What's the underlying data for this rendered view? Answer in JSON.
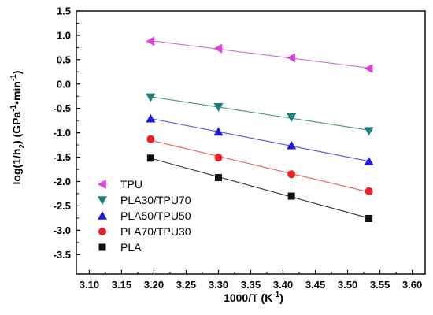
{
  "chart_data": {
    "type": "scatter",
    "xlabel": {
      "main": "1000/T (K",
      "sup": "-1",
      "end": ")"
    },
    "ylabel": {
      "p1": "log(1/h",
      "sub": "2",
      "p2": ") (GPa",
      "sup1": "-1",
      "p3": "•min",
      "sup2": "-1",
      "p4": ")"
    },
    "xlim": [
      3.08,
      3.62
    ],
    "ylim": [
      -3.9,
      1.5
    ],
    "xticks": [
      3.1,
      3.15,
      3.2,
      3.25,
      3.3,
      3.35,
      3.4,
      3.45,
      3.5,
      3.55,
      3.6
    ],
    "xtick_labels": [
      "3.10",
      "3.15",
      "3.20",
      "3.25",
      "3.30",
      "3.35",
      "3.40",
      "3.45",
      "3.50",
      "3.55",
      "3.60"
    ],
    "yticks": [
      1.5,
      1.0,
      0.5,
      0.0,
      -0.5,
      -1.0,
      -1.5,
      -2.0,
      -2.5,
      -3.0,
      -3.5
    ],
    "ytick_labels": [
      "1.5",
      "1.0",
      "0.5",
      "0.0",
      "-0.5",
      "-1.0",
      "-1.5",
      "-2.0",
      "-2.5",
      "-3.0",
      "-3.5"
    ],
    "grid": false,
    "legend_position": "bottom-left",
    "series": [
      {
        "name": "TPU",
        "marker": "triangle-left",
        "color": "#e040e0",
        "line_color": "#d070d0",
        "x": [
          3.195,
          3.3,
          3.413,
          3.533
        ],
        "y": [
          0.88,
          0.73,
          0.54,
          0.32
        ]
      },
      {
        "name": "PLA30/TPU70",
        "marker": "triangle-down",
        "color": "#1a8080",
        "line_color": "#3a9a5a",
        "x": [
          3.195,
          3.3,
          3.413,
          3.533
        ],
        "y": [
          -0.27,
          -0.47,
          -0.68,
          -0.96
        ]
      },
      {
        "name": "PLA50/TPU50",
        "marker": "triangle-up",
        "color": "#1a1ae0",
        "line_color": "#5050e0",
        "x": [
          3.195,
          3.3,
          3.413,
          3.533
        ],
        "y": [
          -0.71,
          -0.98,
          -1.26,
          -1.59
        ]
      },
      {
        "name": "PLA70/TPU30",
        "marker": "circle",
        "color": "#ee2020",
        "line_color": "#e06060",
        "x": [
          3.195,
          3.3,
          3.413,
          3.533
        ],
        "y": [
          -1.13,
          -1.51,
          -1.85,
          -2.2
        ]
      },
      {
        "name": "PLA",
        "marker": "square",
        "color": "#111111",
        "line_color": "#333333",
        "x": [
          3.195,
          3.3,
          3.413,
          3.533
        ],
        "y": [
          -1.52,
          -1.92,
          -2.3,
          -2.76
        ]
      }
    ]
  }
}
